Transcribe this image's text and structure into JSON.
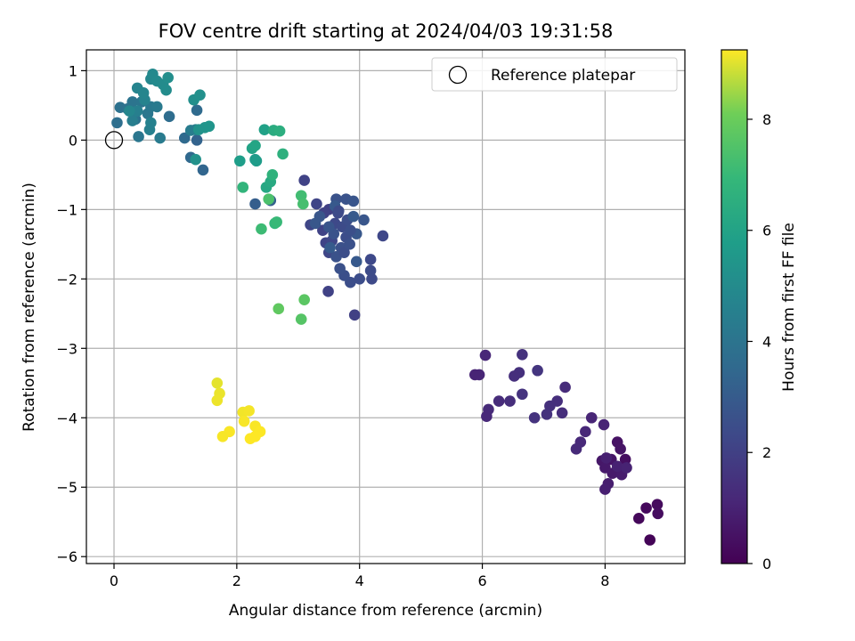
{
  "chart_data": {
    "type": "scatter",
    "title": "FOV centre drift starting at 2024/04/03 19:31:58",
    "xlabel": "Angular distance from reference (arcmin)",
    "ylabel": "Rotation from reference (arcmin)",
    "xlim": [
      -0.45,
      9.3
    ],
    "ylim": [
      -6.1,
      1.3
    ],
    "xticks": [
      0,
      2,
      4,
      6,
      8
    ],
    "yticks": [
      1,
      0,
      -1,
      -2,
      -3,
      -4,
      -5,
      -6
    ],
    "xtick_labels": [
      "0",
      "2",
      "4",
      "6",
      "8"
    ],
    "ytick_labels": [
      "1",
      "0",
      "−1",
      "−2",
      "−3",
      "−4",
      "−5",
      "−6"
    ],
    "grid": true,
    "colormap": "viridis",
    "colorbar": {
      "label": "Hours from first FF file",
      "range": [
        0,
        9.25
      ],
      "ticks": [
        0,
        2,
        4,
        6,
        8
      ],
      "tick_labels": [
        "0",
        "2",
        "4",
        "6",
        "8"
      ]
    },
    "legend": {
      "placement": "top-right",
      "entries": [
        "Reference platepar"
      ]
    },
    "reference_point": {
      "x": 0,
      "y": 0
    },
    "points": [
      [
        8.73,
        -5.76,
        0.1
      ],
      [
        8.55,
        -5.45,
        0.2
      ],
      [
        8.67,
        -5.3,
        0.25
      ],
      [
        8.85,
        -5.25,
        0.3
      ],
      [
        8.86,
        -5.38,
        0.35
      ],
      [
        8.33,
        -4.6,
        0.4
      ],
      [
        8.2,
        -4.35,
        0.5
      ],
      [
        8.25,
        -4.45,
        0.55
      ],
      [
        8.1,
        -4.6,
        0.6
      ],
      [
        7.95,
        -4.62,
        0.65
      ],
      [
        8.0,
        -4.72,
        0.7
      ],
      [
        8.12,
        -4.8,
        0.75
      ],
      [
        8.27,
        -4.82,
        0.8
      ],
      [
        8.05,
        -4.95,
        0.85
      ],
      [
        8.0,
        -5.03,
        0.9
      ],
      [
        8.2,
        -4.7,
        0.95
      ],
      [
        8.35,
        -4.72,
        1.0
      ],
      [
        8.02,
        -4.58,
        0.92
      ],
      [
        7.98,
        -4.1,
        1.05
      ],
      [
        7.78,
        -4.0,
        1.1
      ],
      [
        7.68,
        -4.2,
        1.15
      ],
      [
        7.6,
        -4.35,
        1.2
      ],
      [
        7.53,
        -4.45,
        1.25
      ],
      [
        7.35,
        -3.56,
        1.3
      ],
      [
        7.3,
        -3.93,
        1.35
      ],
      [
        7.22,
        -3.76,
        1.4
      ],
      [
        7.1,
        -3.83,
        1.45
      ],
      [
        7.05,
        -3.95,
        1.5
      ],
      [
        6.85,
        -4.0,
        1.55
      ],
      [
        6.9,
        -3.32,
        1.6
      ],
      [
        6.65,
        -3.66,
        1.55
      ],
      [
        6.65,
        -3.09,
        1.5
      ],
      [
        6.6,
        -3.35,
        1.45
      ],
      [
        6.52,
        -3.4,
        1.4
      ],
      [
        6.45,
        -3.76,
        1.35
      ],
      [
        6.27,
        -3.76,
        1.3
      ],
      [
        6.1,
        -3.88,
        1.25
      ],
      [
        6.07,
        -3.98,
        1.2
      ],
      [
        6.05,
        -3.1,
        1.15
      ],
      [
        5.95,
        -3.38,
        1.1
      ],
      [
        5.88,
        -3.38,
        1.05
      ],
      [
        3.92,
        -2.52,
        2.0
      ],
      [
        3.49,
        -2.18,
        2.05
      ],
      [
        3.1,
        -0.58,
        2.1
      ],
      [
        3.3,
        -0.92,
        2.15
      ],
      [
        3.2,
        -1.22,
        2.2
      ],
      [
        4.38,
        -1.38,
        2.25
      ],
      [
        4.18,
        -1.72,
        2.3
      ],
      [
        4.2,
        -2.0,
        2.35
      ],
      [
        4.18,
        -1.88,
        2.4
      ],
      [
        4.0,
        -2.0,
        2.45
      ],
      [
        3.85,
        -2.05,
        2.5
      ],
      [
        3.75,
        -1.95,
        2.55
      ],
      [
        3.68,
        -1.85,
        2.6
      ],
      [
        3.62,
        -0.85,
        2.65
      ],
      [
        3.78,
        -0.85,
        2.7
      ],
      [
        3.9,
        -0.88,
        2.75
      ],
      [
        4.07,
        -1.15,
        2.8
      ],
      [
        3.95,
        -1.35,
        2.85
      ],
      [
        3.95,
        -1.75,
        2.9
      ],
      [
        3.5,
        -1.0,
        2.0
      ],
      [
        3.42,
        -1.05,
        2.05
      ],
      [
        3.4,
        -1.3,
        2.1
      ],
      [
        3.45,
        -1.48,
        2.15
      ],
      [
        3.5,
        -1.62,
        2.2
      ],
      [
        3.55,
        -1.45,
        2.25
      ],
      [
        3.6,
        -1.2,
        2.3
      ],
      [
        3.65,
        -1.05,
        2.35
      ],
      [
        3.72,
        -1.25,
        2.4
      ],
      [
        3.78,
        -1.4,
        2.45
      ],
      [
        3.8,
        -1.15,
        2.5
      ],
      [
        3.85,
        -1.3,
        2.55
      ],
      [
        3.7,
        -1.55,
        2.6
      ],
      [
        3.62,
        -1.68,
        2.65
      ],
      [
        3.58,
        -1.35,
        2.7
      ],
      [
        3.5,
        -1.25,
        2.75
      ],
      [
        3.35,
        -1.1,
        2.8
      ],
      [
        3.28,
        -1.2,
        2.85
      ],
      [
        3.6,
        -0.95,
        2.9
      ],
      [
        3.9,
        -1.1,
        2.95
      ],
      [
        3.52,
        -1.55,
        3.0
      ],
      [
        3.66,
        -1.02,
        2.4
      ],
      [
        3.75,
        -1.62,
        2.5
      ],
      [
        3.84,
        -1.5,
        2.6
      ],
      [
        2.3,
        -0.92,
        3.1
      ],
      [
        2.55,
        -0.87,
        3.2
      ],
      [
        1.35,
        0.0,
        3.3
      ],
      [
        1.45,
        -0.43,
        3.4
      ],
      [
        1.25,
        -0.25,
        3.5
      ],
      [
        1.15,
        0.03,
        3.55
      ],
      [
        1.35,
        0.43,
        3.6
      ],
      [
        0.9,
        0.34,
        3.7
      ],
      [
        0.05,
        0.25,
        3.8
      ],
      [
        0.1,
        0.47,
        3.85
      ],
      [
        0.22,
        0.45,
        3.9
      ],
      [
        0.35,
        0.3,
        3.95
      ],
      [
        0.3,
        0.55,
        4.0
      ],
      [
        0.45,
        0.55,
        4.05
      ],
      [
        0.4,
        0.05,
        4.1
      ],
      [
        0.55,
        0.38,
        4.15
      ],
      [
        0.6,
        0.48,
        4.2
      ],
      [
        0.7,
        0.48,
        4.25
      ],
      [
        0.75,
        0.03,
        4.3
      ],
      [
        1.25,
        0.14,
        4.35
      ],
      [
        1.33,
        0.15,
        4.4
      ],
      [
        0.3,
        0.28,
        4.45
      ],
      [
        0.38,
        0.42,
        4.5
      ],
      [
        0.58,
        0.15,
        4.55
      ],
      [
        0.6,
        0.25,
        4.6
      ],
      [
        0.5,
        0.58,
        4.65
      ],
      [
        0.38,
        0.75,
        4.7
      ],
      [
        0.48,
        0.68,
        4.75
      ],
      [
        0.25,
        0.42,
        4.8
      ],
      [
        0.6,
        0.88,
        4.85
      ],
      [
        0.63,
        0.95,
        4.9
      ],
      [
        0.7,
        0.85,
        4.95
      ],
      [
        0.8,
        0.8,
        5.0
      ],
      [
        0.85,
        0.72,
        5.05
      ],
      [
        0.88,
        0.9,
        5.1
      ],
      [
        1.3,
        0.58,
        5.15
      ],
      [
        1.4,
        0.65,
        5.2
      ],
      [
        1.33,
        -0.28,
        5.25
      ],
      [
        1.38,
        0.15,
        5.3
      ],
      [
        1.48,
        0.18,
        5.35
      ],
      [
        1.55,
        0.2,
        5.4
      ],
      [
        2.3,
        -0.28,
        5.6
      ],
      [
        2.32,
        -0.3,
        5.7
      ],
      [
        2.05,
        -0.3,
        5.8
      ],
      [
        2.45,
        0.15,
        5.9
      ],
      [
        2.25,
        -0.12,
        6.0
      ],
      [
        2.3,
        -0.08,
        6.1
      ],
      [
        2.48,
        -0.68,
        6.2
      ],
      [
        2.55,
        -0.6,
        6.3
      ],
      [
        2.6,
        0.14,
        6.4
      ],
      [
        2.7,
        0.13,
        6.5
      ],
      [
        2.75,
        -0.2,
        6.6
      ],
      [
        2.58,
        -0.5,
        6.7
      ],
      [
        2.1,
        -0.68,
        6.8
      ],
      [
        2.62,
        -1.2,
        6.9
      ],
      [
        2.65,
        -1.18,
        7.0
      ],
      [
        2.4,
        -1.28,
        7.1
      ],
      [
        3.05,
        -0.8,
        7.2
      ],
      [
        3.08,
        -0.92,
        7.3
      ],
      [
        2.52,
        -0.85,
        7.4
      ],
      [
        3.05,
        -2.58,
        7.6
      ],
      [
        3.1,
        -2.3,
        7.7
      ],
      [
        2.68,
        -2.43,
        7.8
      ],
      [
        1.68,
        -3.5,
        9.05
      ],
      [
        1.72,
        -3.65,
        9.1
      ],
      [
        1.68,
        -3.75,
        9.12
      ],
      [
        2.1,
        -3.92,
        9.15
      ],
      [
        2.2,
        -3.9,
        9.18
      ],
      [
        2.12,
        -4.05,
        9.2
      ],
      [
        2.3,
        -4.12,
        9.22
      ],
      [
        2.38,
        -4.2,
        9.24
      ],
      [
        2.3,
        -4.27,
        9.25
      ],
      [
        2.22,
        -4.3,
        9.25
      ],
      [
        1.88,
        -4.2,
        9.22
      ],
      [
        1.77,
        -4.27,
        9.2
      ]
    ]
  }
}
